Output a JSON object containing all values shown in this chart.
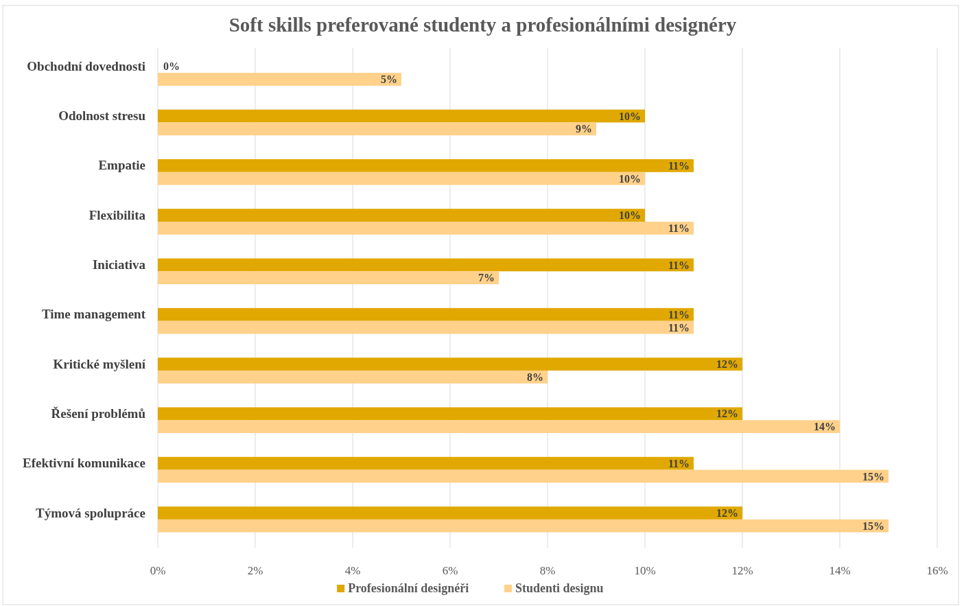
{
  "chart_data": {
    "type": "bar",
    "orientation": "horizontal",
    "title": "Soft skills preferované studenty a profesionálními designéry",
    "categories": [
      "Obchodní dovednosti",
      "Odolnost stresu",
      "Empatie",
      "Flexibilita",
      "Iniciativa",
      "Time management",
      "Kritické myšlení",
      "Řešení problémů",
      "Efektivní komunikace",
      "Týmová spolupráce"
    ],
    "series": [
      {
        "name": "Profesionální designéři",
        "color": "#e0a800",
        "values": [
          0,
          10,
          11,
          10,
          11,
          11,
          12,
          12,
          11,
          12
        ],
        "value_labels": [
          "0%",
          "10%",
          "11%",
          "10%",
          "11%",
          "11%",
          "12%",
          "12%",
          "11%",
          "12%"
        ]
      },
      {
        "name": "Studenti designu",
        "color": "#ffd18a",
        "values": [
          5,
          9,
          10,
          11,
          7,
          11,
          8,
          14,
          15,
          15
        ],
        "value_labels": [
          "5%",
          "9%",
          "10%",
          "11%",
          "7%",
          "11%",
          "8%",
          "14%",
          "15%",
          "15%"
        ]
      }
    ],
    "xlim": [
      0,
      16
    ],
    "xticks": [
      {
        "value": 0,
        "label": "0%"
      },
      {
        "value": 2,
        "label": "2%"
      },
      {
        "value": 4,
        "label": "4%"
      },
      {
        "value": 6,
        "label": "6%"
      },
      {
        "value": 8,
        "label": "8%"
      },
      {
        "value": 10,
        "label": "10%"
      },
      {
        "value": 12,
        "label": "12%"
      },
      {
        "value": 14,
        "label": "14%"
      },
      {
        "value": 16,
        "label": "16%"
      }
    ],
    "grid": "x",
    "legend": "bottom"
  }
}
